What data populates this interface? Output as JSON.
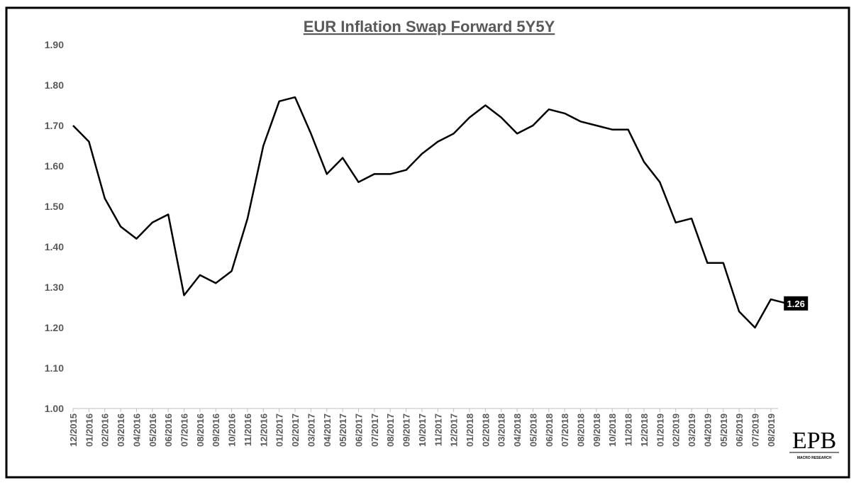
{
  "chart_data": {
    "type": "line",
    "title": "EUR Inflation Swap Forward 5Y5Y",
    "logo": "EPB",
    "logo_subtitle": "MACRO RESEARCH",
    "categories": [
      "12/2015",
      "01/2016",
      "02/2016",
      "03/2016",
      "04/2016",
      "05/2016",
      "06/2016",
      "07/2016",
      "08/2016",
      "09/2016",
      "10/2016",
      "11/2016",
      "12/2016",
      "01/2017",
      "02/2017",
      "03/2017",
      "04/2017",
      "05/2017",
      "06/2017",
      "07/2017",
      "08/2017",
      "09/2017",
      "10/2017",
      "11/2017",
      "12/2017",
      "01/2018",
      "02/2018",
      "03/2018",
      "04/2018",
      "05/2018",
      "06/2018",
      "07/2018",
      "08/2018",
      "09/2018",
      "10/2018",
      "11/2018",
      "12/2018",
      "01/2019",
      "02/2019",
      "03/2019",
      "04/2019",
      "05/2019",
      "06/2019",
      "07/2019",
      "08/2019",
      null
    ],
    "series": [
      {
        "name": "EUR Inflation Swap Forward 5Y5Y",
        "color": "#000000",
        "values": [
          1.7,
          1.66,
          1.52,
          1.45,
          1.42,
          1.46,
          1.48,
          1.28,
          1.33,
          1.31,
          1.34,
          1.47,
          1.65,
          1.76,
          1.77,
          1.68,
          1.58,
          1.62,
          1.56,
          1.58,
          1.58,
          1.59,
          1.63,
          1.66,
          1.68,
          1.72,
          1.75,
          1.72,
          1.68,
          1.7,
          1.74,
          1.73,
          1.71,
          1.7,
          1.69,
          1.69,
          1.61,
          1.56,
          1.46,
          1.47,
          1.36,
          1.36,
          1.24,
          1.2,
          1.27,
          1.26
        ],
        "value_labels": [
          null,
          null,
          null,
          null,
          null,
          null,
          null,
          null,
          null,
          null,
          null,
          null,
          null,
          null,
          null,
          null,
          null,
          null,
          null,
          null,
          null,
          null,
          null,
          null,
          null,
          null,
          null,
          null,
          null,
          null,
          null,
          null,
          null,
          null,
          null,
          null,
          null,
          null,
          null,
          null,
          null,
          null,
          null,
          null,
          null,
          "1.26"
        ]
      }
    ],
    "ylim": [
      1.0,
      1.9
    ],
    "yticks": [
      {
        "value": 1.0,
        "label": "1.00"
      },
      {
        "value": 1.1,
        "label": "1.10"
      },
      {
        "value": 1.2,
        "label": "1.20"
      },
      {
        "value": 1.3,
        "label": "1.30"
      },
      {
        "value": 1.4,
        "label": "1.40"
      },
      {
        "value": 1.5,
        "label": "1.50"
      },
      {
        "value": 1.6,
        "label": "1.60"
      },
      {
        "value": 1.7,
        "label": "1.70"
      },
      {
        "value": 1.8,
        "label": "1.80"
      },
      {
        "value": 1.9,
        "label": "1.90"
      }
    ],
    "grid": false
  }
}
